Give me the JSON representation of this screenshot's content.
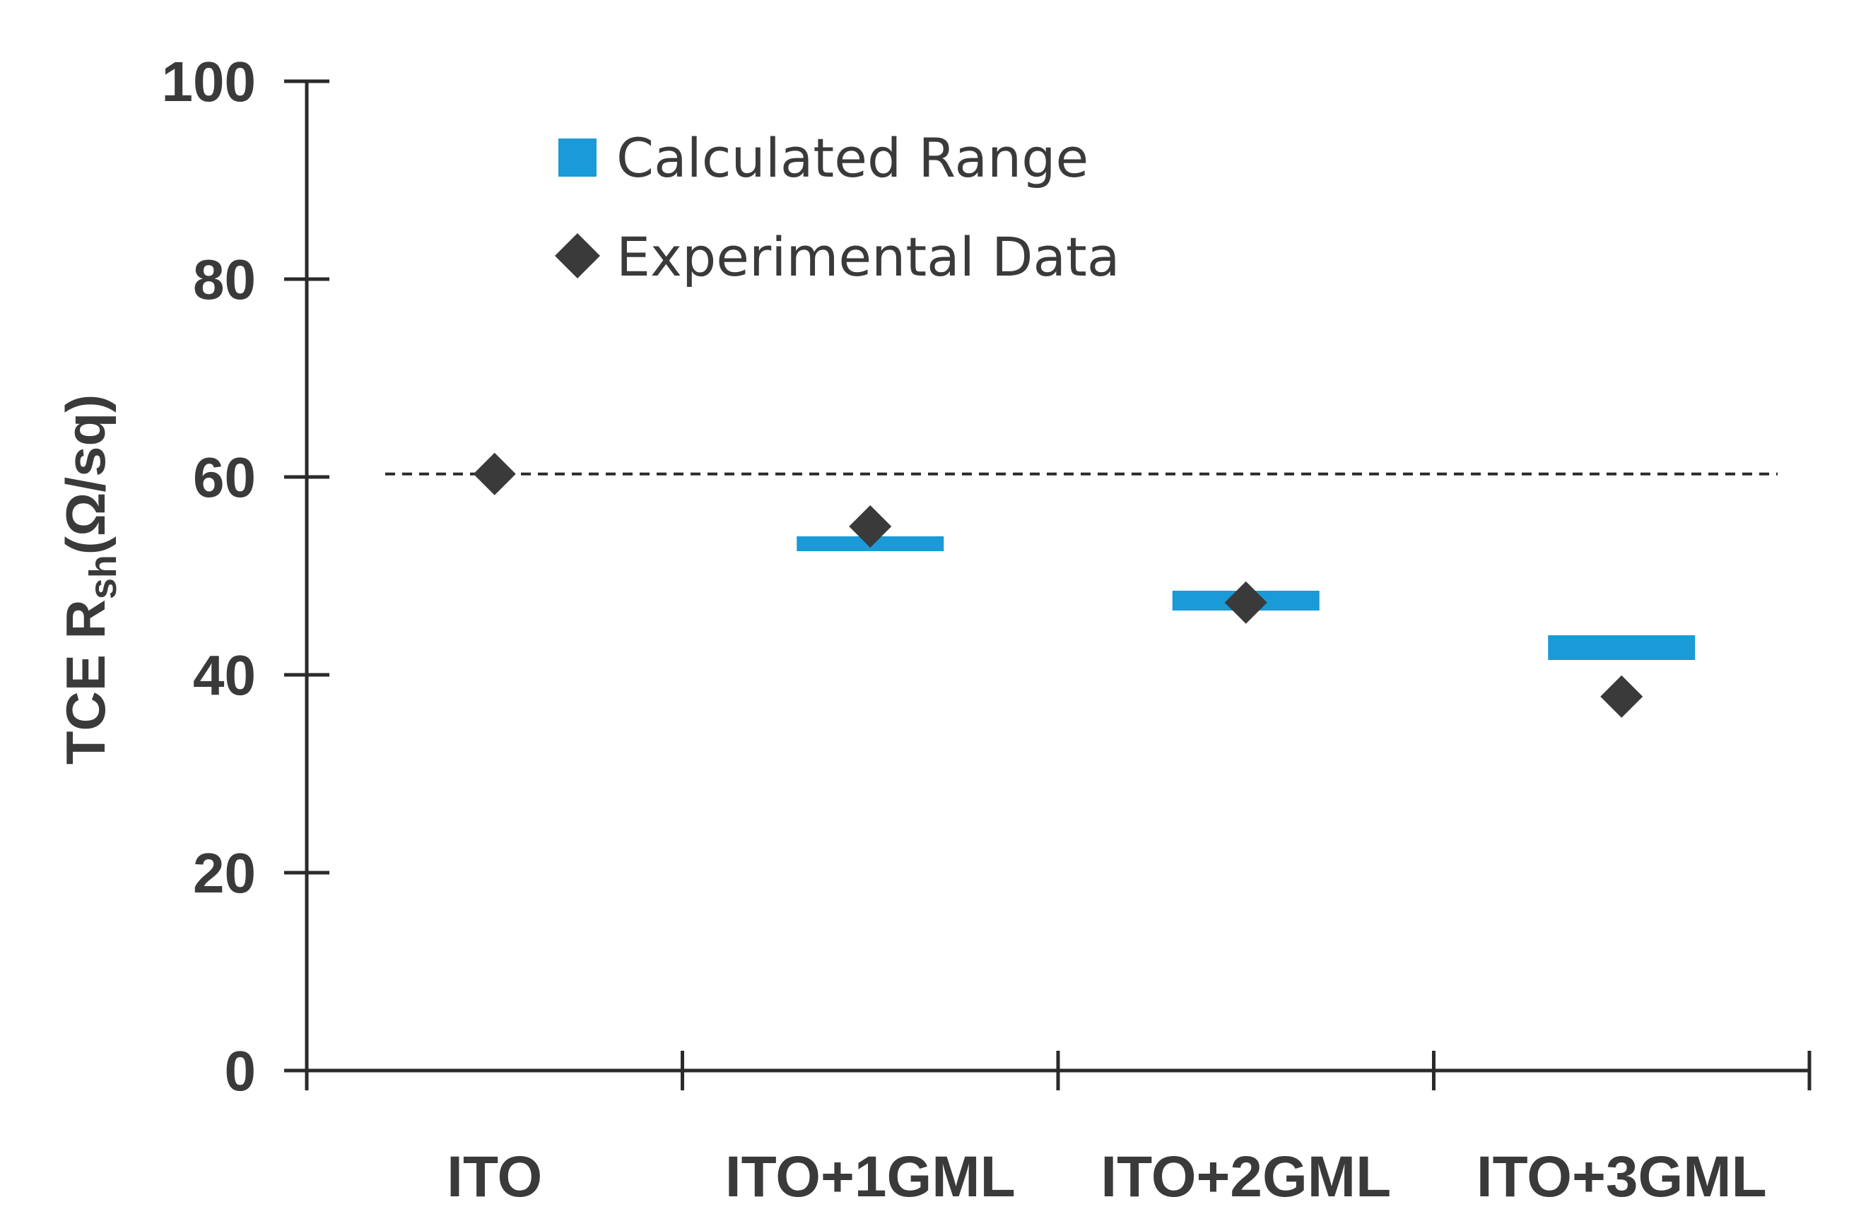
{
  "chart_data": {
    "type": "scatter",
    "categories": [
      "ITO",
      "ITO+1GML",
      "ITO+2GML",
      "ITO+3GML"
    ],
    "ylabel": "TCE R",
    "ylabel_sub": "sh",
    "ylabel_unit": "(Ω/sq)",
    "ylim": [
      0,
      100
    ],
    "yticks": [
      "0",
      "20",
      "40",
      "60",
      "80",
      "100"
    ],
    "ytick_values": [
      0,
      20,
      40,
      60,
      80,
      100
    ],
    "series": [
      {
        "name": "Calculated Range",
        "kind": "range-bar",
        "color": "#1a9ad6",
        "ranges": [
          null,
          [
            52.5,
            54.0
          ],
          [
            46.5,
            48.5
          ],
          [
            41.5,
            44.0
          ]
        ]
      },
      {
        "name": "Experimental Data",
        "kind": "diamond",
        "color": "#3a3a3a",
        "values": [
          60.3,
          55.0,
          47.3,
          37.8
        ]
      }
    ],
    "reference_line": {
      "value": 60.3,
      "style": "dashed",
      "color": "#2a2a2a"
    },
    "legend": {
      "position": "top-center",
      "items": [
        "Calculated Range",
        "Experimental Data"
      ]
    },
    "axis_color": "#2a2a2a"
  }
}
